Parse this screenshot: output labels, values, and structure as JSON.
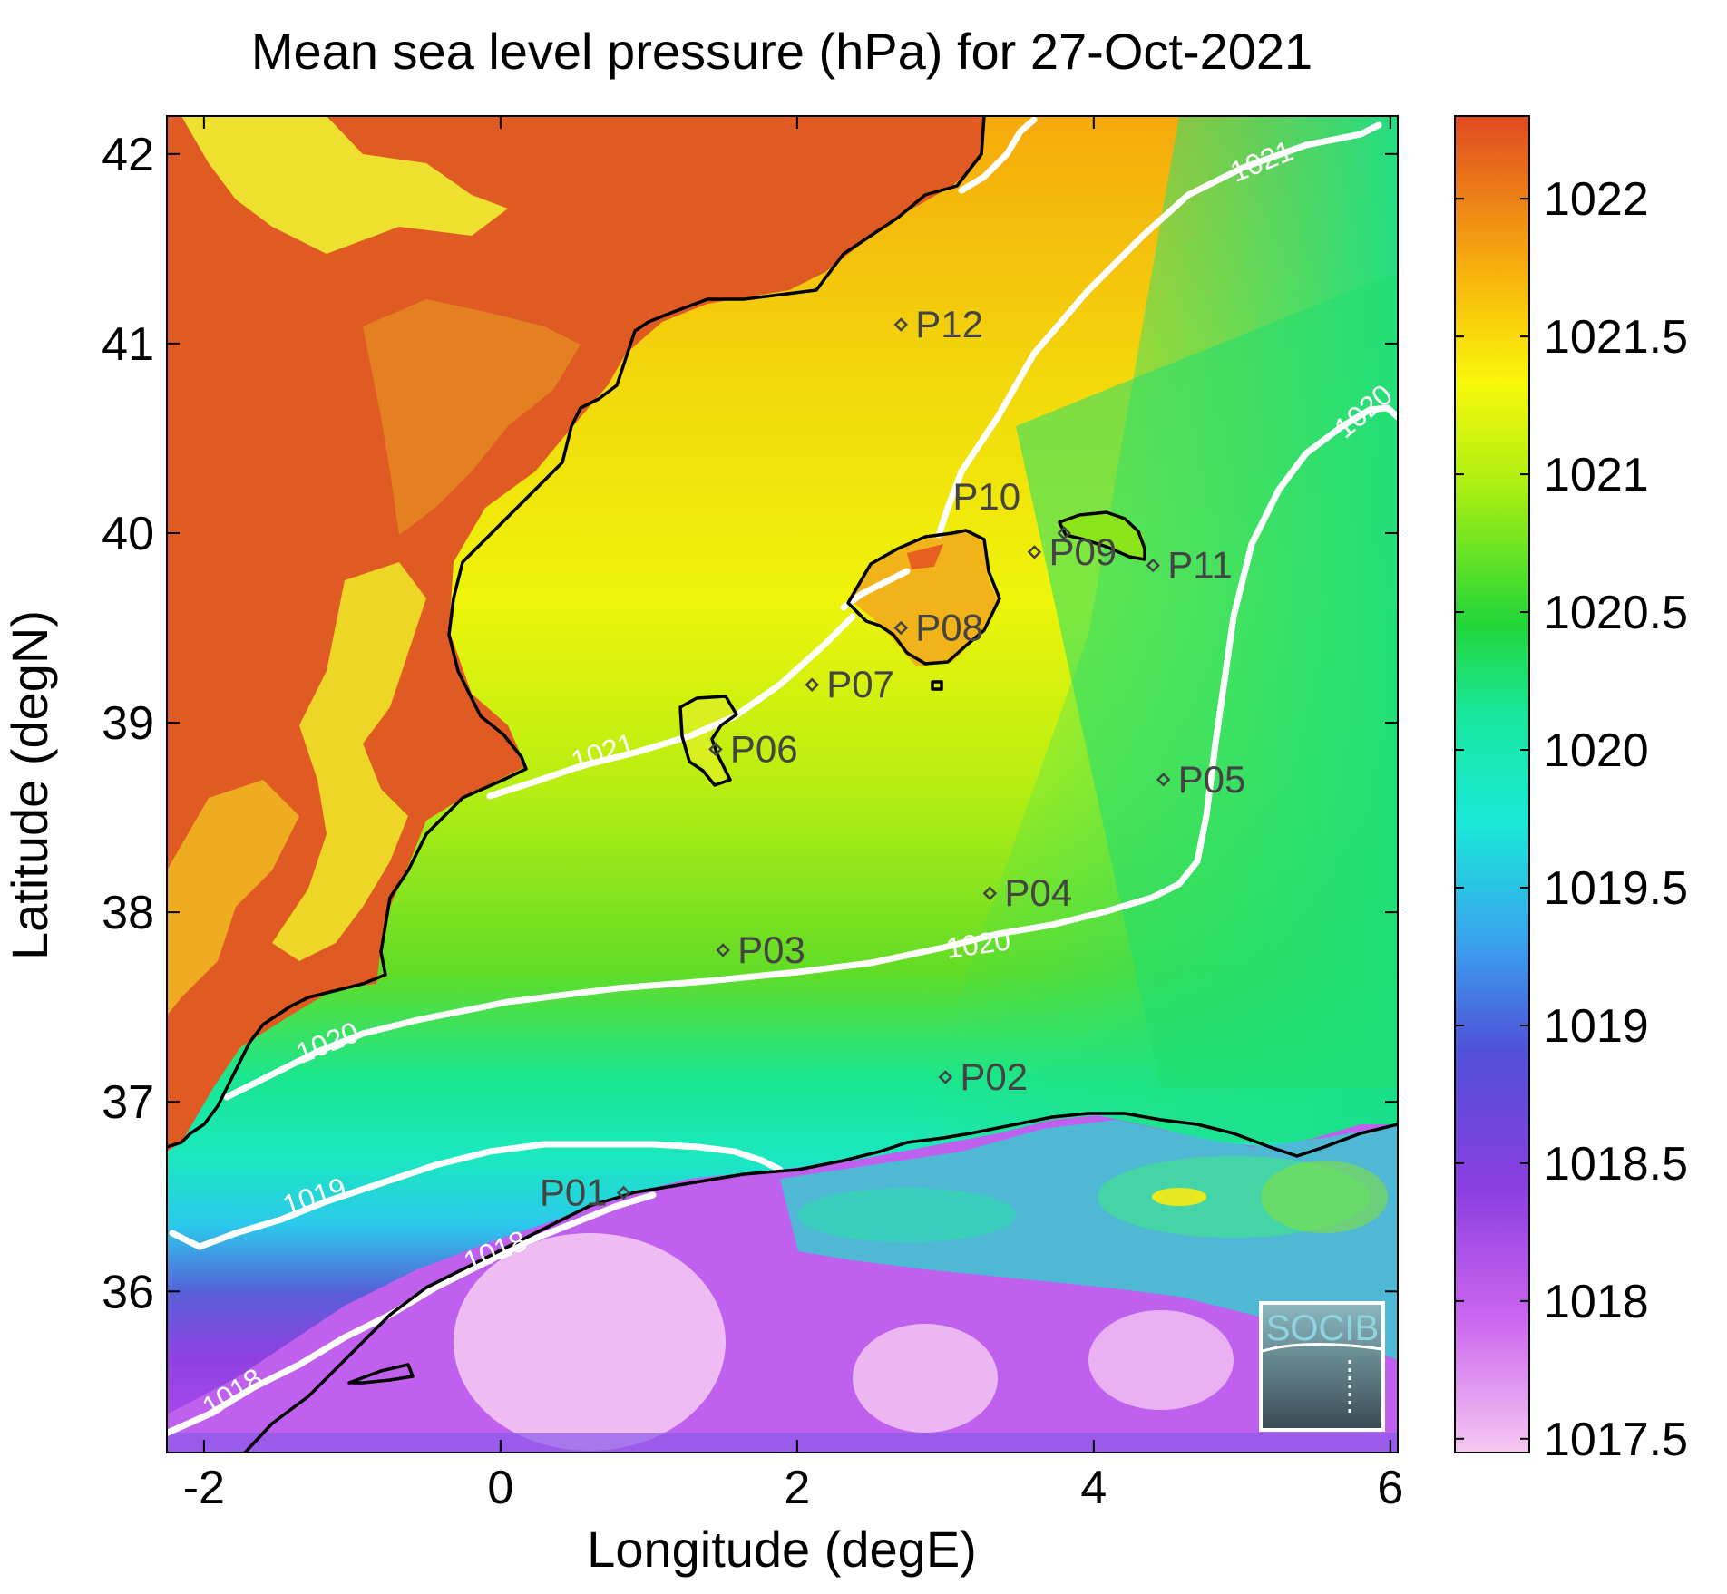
{
  "title": "Mean sea level pressure (hPa) for 27-Oct-2021",
  "xlabel": "Longitude (degE)",
  "ylabel": "Latitude (degN)",
  "x_ticks": [
    "-2",
    "0",
    "2",
    "4",
    "6"
  ],
  "y_ticks": [
    "42",
    "41",
    "40",
    "39",
    "38",
    "37",
    "36"
  ],
  "colorbar": {
    "ticks": [
      "1022",
      "1021.5",
      "1021",
      "1020.5",
      "1020",
      "1019.5",
      "1019",
      "1018.5",
      "1018",
      "1017.5"
    ],
    "min": 1017.45,
    "max": 1022.3
  },
  "logo_text": "SOCIB",
  "points": [
    {
      "label": "P01",
      "lon": 0.83,
      "lat": 36.52
    },
    {
      "label": "P02",
      "lon": 3.0,
      "lat": 37.13
    },
    {
      "label": "P03",
      "lon": 1.5,
      "lat": 37.8
    },
    {
      "label": "P04",
      "lon": 3.3,
      "lat": 38.1
    },
    {
      "label": "P05",
      "lon": 4.47,
      "lat": 38.7
    },
    {
      "label": "P06",
      "lon": 1.45,
      "lat": 38.86
    },
    {
      "label": "P07",
      "lon": 2.1,
      "lat": 39.2
    },
    {
      "label": "P08",
      "lon": 2.7,
      "lat": 39.5
    },
    {
      "label": "P09",
      "lon": 3.6,
      "lat": 39.9
    },
    {
      "label": "P10",
      "lon": 3.8,
      "lat": 40.0
    },
    {
      "label": "P11",
      "lon": 4.4,
      "lat": 39.83
    },
    {
      "label": "P12",
      "lon": 2.7,
      "lat": 41.1
    }
  ],
  "contour_labels": [
    "1021",
    "1021",
    "1020",
    "1020",
    "1020",
    "1019",
    "1018",
    "1018"
  ],
  "colors": {
    "land_high": "#e05a24",
    "contour": "#ffffff",
    "coast": "#000000"
  }
}
